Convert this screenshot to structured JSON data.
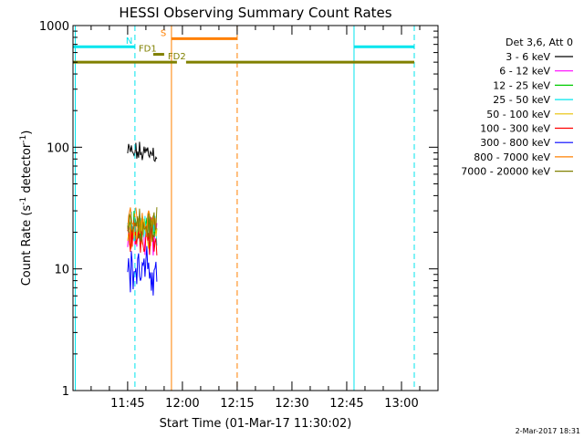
{
  "chart_data": {
    "type": "line",
    "title": "HESSI Observing Summary Count Rates",
    "xlabel": "Start Time (01-Mar-17 11:30:02)",
    "ylabel_parts": [
      "Count Rate (s",
      "-1",
      " detector",
      "-1",
      ")"
    ],
    "y_scale": "log",
    "ylim": [
      1,
      1000
    ],
    "y_ticks": [
      1,
      10,
      100,
      1000
    ],
    "y_tick_labels": [
      "1",
      "10",
      "100",
      "1000"
    ],
    "x_time_range": [
      "11:30:02",
      "13:10:00"
    ],
    "x_tick_times": [
      "11:45",
      "12:00",
      "12:15",
      "12:30",
      "12:45",
      "13:00"
    ],
    "x_tick_labels": [
      "11:45",
      "12:00",
      "12:15",
      "12:30",
      "12:45",
      "13:00"
    ],
    "legend": {
      "position": "right",
      "header": "Det 3,6, Att 0",
      "entries": [
        {
          "label": "3 - 6 keV",
          "color": "#000000"
        },
        {
          "label": "6 - 12 keV",
          "color": "#ff00ff"
        },
        {
          "label": "12 - 25 keV",
          "color": "#00cc00"
        },
        {
          "label": "25 - 50 keV",
          "color": "#00e5ee"
        },
        {
          "label": "50 - 100 keV",
          "color": "#e8c000"
        },
        {
          "label": "100 - 300 keV",
          "color": "#ff0000"
        },
        {
          "label": "300 - 800 keV",
          "color": "#0000ff"
        },
        {
          "label": "800 - 7000 keV",
          "color": "#ff8000"
        },
        {
          "label": "7000 - 20000 keV",
          "color": "#808000"
        }
      ]
    },
    "series": [
      {
        "name": "3 - 6 keV",
        "color": "#000000",
        "start": "11:45:00",
        "end": "11:53:00",
        "median": 90,
        "spread": 0.12
      },
      {
        "name": "6 - 12 keV",
        "color": "#ff00ff",
        "start": "11:45:00",
        "end": "11:53:00",
        "median": 18,
        "spread": 0.22
      },
      {
        "name": "12 - 25 keV",
        "color": "#00cc00",
        "start": "11:45:00",
        "end": "11:53:00",
        "median": 23,
        "spread": 0.18
      },
      {
        "name": "25 - 50 keV",
        "color": "#00e5ee",
        "start": "11:45:00",
        "end": "11:53:00",
        "median": 21,
        "spread": 0.18
      },
      {
        "name": "50 - 100 keV",
        "color": "#e8c000",
        "start": "11:45:00",
        "end": "11:53:00",
        "median": 20,
        "spread": 0.18
      },
      {
        "name": "100 - 300 keV",
        "color": "#ff0000",
        "start": "11:45:00",
        "end": "11:53:00",
        "median": 19,
        "spread": 0.2
      },
      {
        "name": "300 - 800 keV",
        "color": "#0000ff",
        "start": "11:45:00",
        "end": "11:53:00",
        "median": 9.5,
        "spread": 0.25
      },
      {
        "name": "800 - 7000 keV",
        "color": "#ff8000",
        "start": "11:45:00",
        "end": "11:53:00",
        "median": 25,
        "spread": 0.18
      },
      {
        "name": "7000 - 20000 keV",
        "color": "#808000",
        "start": "11:45:00",
        "end": "11:53:00",
        "median": 22,
        "spread": 0.18
      }
    ],
    "flag_bars": [
      {
        "label": "N",
        "color": "#00e5ee",
        "y": 670,
        "segments": [
          [
            "11:30:02",
            "11:47:00"
          ],
          [
            "12:47:00",
            "13:03:30"
          ]
        ],
        "label_time": "11:44:30"
      },
      {
        "label": "S",
        "color": "#ff8000",
        "y": 780,
        "segments": [
          [
            "11:57:00",
            "12:15:00"
          ]
        ],
        "label_time": "11:54:00"
      },
      {
        "label": "FD1",
        "color": "#808000",
        "y": 580,
        "segments": [
          [
            "11:52:00",
            "11:55:00"
          ]
        ],
        "label_time": "11:48:00"
      },
      {
        "label": "FD2",
        "color": "#808000",
        "y": 500,
        "segments": [
          [
            "11:30:02",
            "11:58:30"
          ],
          [
            "12:01:00",
            "13:03:30"
          ]
        ],
        "label_time": "11:56:00"
      }
    ],
    "vertical_lines": [
      {
        "time": "11:30:40",
        "color": "#00e5ee",
        "style": "solid"
      },
      {
        "time": "11:47:00",
        "color": "#00e5ee",
        "style": "dashed"
      },
      {
        "time": "11:57:00",
        "color": "#ff8000",
        "style": "solid"
      },
      {
        "time": "12:15:00",
        "color": "#ff8000",
        "style": "dashed"
      },
      {
        "time": "12:47:00",
        "color": "#00e5ee",
        "style": "solid"
      },
      {
        "time": "13:03:30",
        "color": "#00e5ee",
        "style": "dashed"
      }
    ],
    "footer": "2-Mar-2017 18:31"
  }
}
